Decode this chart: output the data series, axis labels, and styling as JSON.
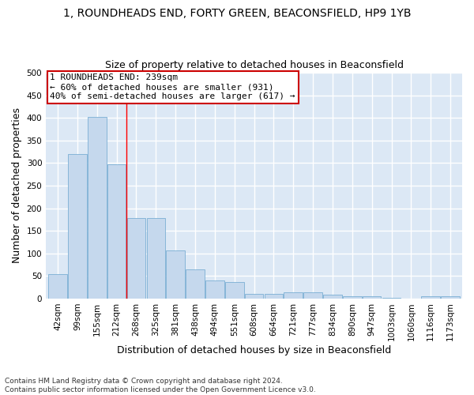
{
  "title_line1": "1, ROUNDHEADS END, FORTY GREEN, BEACONSFIELD, HP9 1YB",
  "title_line2": "Size of property relative to detached houses in Beaconsfield",
  "xlabel": "Distribution of detached houses by size in Beaconsfield",
  "ylabel": "Number of detached properties",
  "footnote": "Contains HM Land Registry data © Crown copyright and database right 2024.\nContains public sector information licensed under the Open Government Licence v3.0.",
  "categories": [
    "42sqm",
    "99sqm",
    "155sqm",
    "212sqm",
    "268sqm",
    "325sqm",
    "381sqm",
    "438sqm",
    "494sqm",
    "551sqm",
    "608sqm",
    "664sqm",
    "721sqm",
    "777sqm",
    "834sqm",
    "890sqm",
    "947sqm",
    "1003sqm",
    "1060sqm",
    "1116sqm",
    "1173sqm"
  ],
  "values": [
    54,
    320,
    402,
    297,
    178,
    178,
    107,
    65,
    40,
    36,
    10,
    10,
    14,
    14,
    8,
    5,
    5,
    2,
    0,
    5,
    5
  ],
  "bar_color": "#c5d8ed",
  "bar_edge_color": "#7bafd4",
  "property_line_idx": 3.5,
  "annotation_title": "1 ROUNDHEADS END: 239sqm",
  "annotation_line2": "← 60% of detached houses are smaller (931)",
  "annotation_line3": "40% of semi-detached houses are larger (617) →",
  "annotation_box_color": "#ffffff",
  "annotation_box_edge": "#cc0000",
  "ylim": [
    0,
    500
  ],
  "yticks": [
    0,
    50,
    100,
    150,
    200,
    250,
    300,
    350,
    400,
    450,
    500
  ],
  "background_color": "#dce8f5",
  "grid_color": "#ffffff",
  "fig_bg_color": "#ffffff",
  "title_fontsize": 10,
  "subtitle_fontsize": 9,
  "axis_label_fontsize": 9,
  "tick_fontsize": 7.5,
  "annotation_fontsize": 8
}
